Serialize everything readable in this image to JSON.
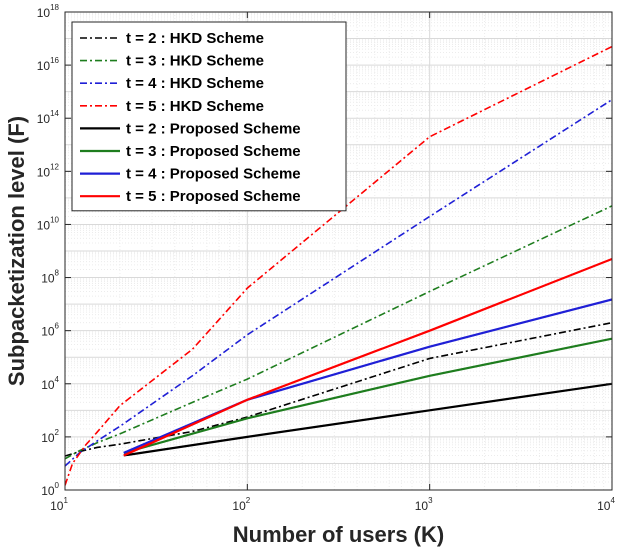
{
  "chart_data": {
    "type": "line",
    "xlabel": "Number of users (K)",
    "ylabel": "Subpacketization level (F)",
    "xscale": "log",
    "yscale": "log",
    "xlim": [
      10,
      10000
    ],
    "ylim": [
      1,
      1e+18
    ],
    "xticks": [
      {
        "value": 10,
        "base": "10",
        "exp": "1"
      },
      {
        "value": 100,
        "base": "10",
        "exp": "2"
      },
      {
        "value": 1000,
        "base": "10",
        "exp": "3"
      },
      {
        "value": 10000,
        "base": "10",
        "exp": "4"
      }
    ],
    "yticks": [
      {
        "value": 1,
        "base": "10",
        "exp": "0"
      },
      {
        "value": 100,
        "base": "10",
        "exp": "2"
      },
      {
        "value": 10000,
        "base": "10",
        "exp": "4"
      },
      {
        "value": 1000000,
        "base": "10",
        "exp": "6"
      },
      {
        "value": 100000000,
        "base": "10",
        "exp": "8"
      },
      {
        "value": 10000000000,
        "base": "10",
        "exp": "10"
      },
      {
        "value": 1000000000000,
        "base": "10",
        "exp": "12"
      },
      {
        "value": 100000000000000,
        "base": "10",
        "exp": "14"
      },
      {
        "value": 10000000000000000,
        "base": "10",
        "exp": "16"
      },
      {
        "value": 1000000000000000000,
        "base": "10",
        "exp": "18"
      }
    ],
    "grid": true,
    "legend_position": "top-left",
    "series": [
      {
        "name": "t = 2 : HKD Scheme",
        "color": "#000000",
        "style": "dashdot",
        "points": [
          [
            10,
            19
          ],
          [
            12,
            28
          ],
          [
            15,
            40
          ],
          [
            20,
            53
          ],
          [
            50,
            160
          ],
          [
            100,
            560
          ],
          [
            1000,
            90000
          ],
          [
            10000,
            2000000
          ]
        ]
      },
      {
        "name": "t = 3 : HKD Scheme",
        "color": "#1e7d1e",
        "style": "dashdot",
        "points": [
          [
            10,
            15
          ],
          [
            12,
            30
          ],
          [
            15,
            60
          ],
          [
            20,
            130
          ],
          [
            50,
            2000
          ],
          [
            100,
            15000
          ],
          [
            1000,
            30000000
          ],
          [
            10000,
            50000000000
          ]
        ]
      },
      {
        "name": "t = 4 : HKD Scheme",
        "color": "#1f1fd6",
        "style": "dashdot",
        "points": [
          [
            10,
            8
          ],
          [
            12,
            25
          ],
          [
            15,
            70
          ],
          [
            20,
            250
          ],
          [
            50,
            20000
          ],
          [
            100,
            700000
          ],
          [
            1000,
            20000000000
          ],
          [
            10000,
            500000000000000
          ]
        ]
      },
      {
        "name": "t = 5 : HKD Scheme",
        "color": "#ff0000",
        "style": "dashdot",
        "points": [
          [
            10,
            1.5
          ],
          [
            11,
            10
          ],
          [
            13,
            50
          ],
          [
            15,
            150
          ],
          [
            20,
            1500
          ],
          [
            50,
            200000
          ],
          [
            100,
            40000000
          ],
          [
            1000,
            20000000000000
          ],
          [
            10000,
            5e+16
          ]
        ]
      },
      {
        "name": "t = 2 : Proposed Scheme",
        "color": "#000000",
        "style": "solid",
        "points": [
          [
            21,
            20
          ],
          [
            100,
            100
          ],
          [
            1000,
            1000
          ],
          [
            10000,
            10000
          ]
        ]
      },
      {
        "name": "t = 3 : Proposed Scheme",
        "color": "#1e7d1e",
        "style": "solid",
        "points": [
          [
            21,
            25
          ],
          [
            100,
            500
          ],
          [
            1000,
            20000
          ],
          [
            10000,
            500000
          ]
        ]
      },
      {
        "name": "t = 4 : Proposed Scheme",
        "color": "#1f1fd6",
        "style": "solid",
        "points": [
          [
            21,
            25
          ],
          [
            100,
            2500
          ],
          [
            1000,
            250000
          ],
          [
            10000,
            15000000
          ]
        ]
      },
      {
        "name": "t = 5 : Proposed Scheme",
        "color": "#ff0000",
        "style": "solid",
        "points": [
          [
            21,
            20
          ],
          [
            100,
            2500
          ],
          [
            1000,
            1000000
          ],
          [
            10000,
            500000000
          ]
        ]
      }
    ]
  }
}
